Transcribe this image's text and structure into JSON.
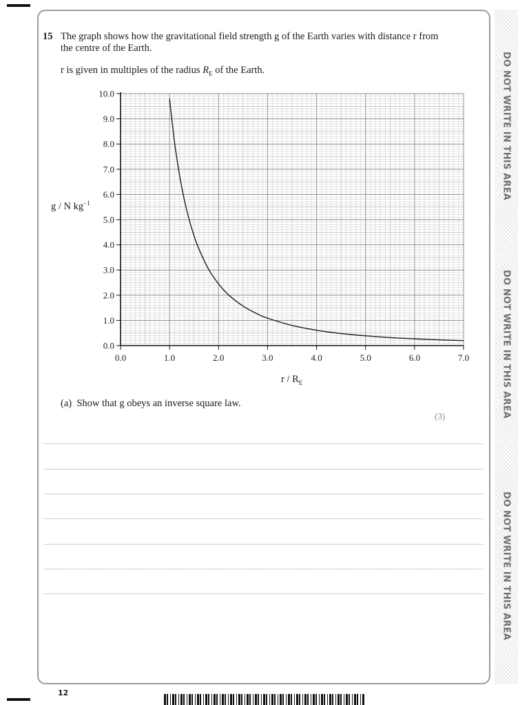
{
  "question": {
    "number": "15",
    "intro": "The graph shows how the gravitational field strength g of the Earth varies with distance r from the centre of the Earth.",
    "note_prefix": "r is given in multiples of the radius ",
    "note_symbol": "R",
    "note_sub": "E",
    "note_suffix": " of the Earth."
  },
  "y_axis_label": {
    "text": "g / N kg",
    "sup": "−1"
  },
  "x_axis_label": {
    "text": "r / R",
    "sub": "E"
  },
  "chart_data": {
    "type": "line",
    "x_label": "r / R_E",
    "y_label": "g / N kg^-1",
    "xlim": [
      0,
      7
    ],
    "ylim": [
      0,
      10
    ],
    "x_ticks": [
      "0.0",
      "1.0",
      "2.0",
      "3.0",
      "4.0",
      "5.0",
      "6.0",
      "7.0"
    ],
    "y_ticks": [
      "0.0",
      "1.0",
      "2.0",
      "3.0",
      "4.0",
      "5.0",
      "6.0",
      "7.0",
      "8.0",
      "9.0",
      "10.0"
    ],
    "grid": true,
    "series": [
      {
        "x": [
          1.0,
          1.1,
          1.2,
          1.3,
          1.4,
          1.5,
          1.6,
          1.8,
          2.0,
          2.2,
          2.5,
          2.8,
          3.0,
          3.5,
          4.0,
          4.5,
          5.0,
          5.5,
          6.0,
          6.5,
          7.0
        ],
        "y": [
          9.8,
          8.1,
          6.81,
          5.8,
          5.0,
          4.36,
          3.83,
          3.02,
          2.45,
          2.02,
          1.57,
          1.25,
          1.09,
          0.8,
          0.61,
          0.48,
          0.39,
          0.32,
          0.27,
          0.23,
          0.2
        ]
      }
    ]
  },
  "part_a": {
    "label": "(a)",
    "text": "Show that g obeys an inverse square law.",
    "marks": "(3)"
  },
  "side_notice": [
    "DO NOT WRITE IN THIS AREA",
    "DO NOT WRITE IN THIS AREA",
    "DO NOT WRITE IN THIS AREA"
  ],
  "page_number": "12"
}
